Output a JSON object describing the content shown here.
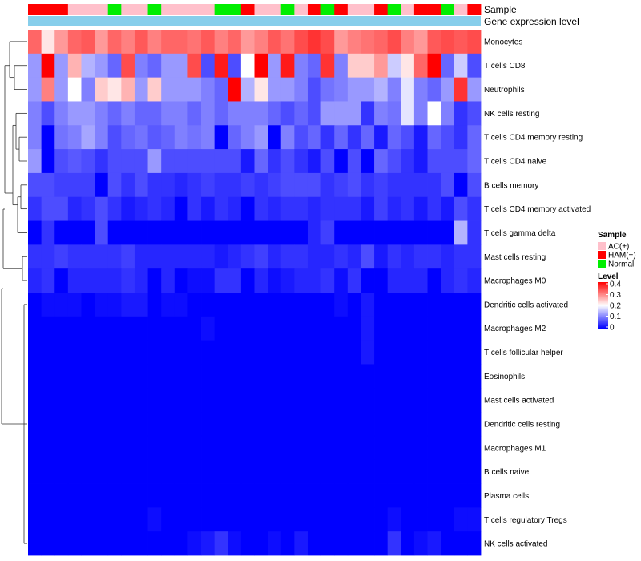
{
  "chart_data": {
    "type": "heatmap",
    "title": "",
    "n_columns": 34,
    "annotations": [
      {
        "name": "Sample"
      },
      {
        "name": "Gene expression level"
      }
    ],
    "sample_annotation": [
      "HAM(+)",
      "HAM(+)",
      "HAM(+)",
      "AC(+)",
      "AC(+)",
      "AC(+)",
      "Normal",
      "AC(+)",
      "AC(+)",
      "Normal",
      "AC(+)",
      "AC(+)",
      "AC(+)",
      "AC(+)",
      "Normal",
      "Normal",
      "HAM(+)",
      "AC(+)",
      "AC(+)",
      "Normal",
      "AC(+)",
      "HAM(+)",
      "Normal",
      "HAM(+)",
      "AC(+)",
      "AC(+)",
      "HAM(+)",
      "Normal",
      "AC(+)",
      "HAM(+)",
      "HAM(+)",
      "Normal",
      "AC(+)",
      "HAM(+)"
    ],
    "gene_expression_color": "#87ceeb",
    "rows": [
      {
        "name": "Monocytes",
        "values": [
          0.32,
          0.22,
          0.28,
          0.32,
          0.33,
          0.28,
          0.32,
          0.3,
          0.33,
          0.3,
          0.32,
          0.32,
          0.31,
          0.33,
          0.3,
          0.32,
          0.28,
          0.3,
          0.33,
          0.31,
          0.34,
          0.36,
          0.34,
          0.28,
          0.3,
          0.31,
          0.32,
          0.34,
          0.3,
          0.28,
          0.33,
          0.34,
          0.33,
          0.34
        ]
      },
      {
        "name": "T cells CD8",
        "values": [
          0.12,
          0.4,
          0.12,
          0.26,
          0.14,
          0.12,
          0.08,
          0.34,
          0.1,
          0.08,
          0.12,
          0.12,
          0.34,
          0.06,
          0.38,
          0.06,
          0.2,
          0.4,
          0.12,
          0.38,
          0.1,
          0.08,
          0.36,
          0.1,
          0.24,
          0.24,
          0.28,
          0.16,
          0.22,
          0.32,
          0.4,
          0.08,
          0.16,
          0.06
        ]
      },
      {
        "name": "Neutrophils",
        "values": [
          0.12,
          0.3,
          0.12,
          0.2,
          0.1,
          0.24,
          0.22,
          0.26,
          0.12,
          0.24,
          0.12,
          0.12,
          0.12,
          0.1,
          0.08,
          0.4,
          0.14,
          0.22,
          0.12,
          0.12,
          0.1,
          0.06,
          0.09,
          0.1,
          0.12,
          0.12,
          0.14,
          0.1,
          0.18,
          0.1,
          0.08,
          0.12,
          0.36,
          0.12
        ]
      },
      {
        "name": "NK cells resting",
        "values": [
          0.1,
          0.06,
          0.1,
          0.12,
          0.12,
          0.1,
          0.08,
          0.1,
          0.08,
          0.08,
          0.1,
          0.1,
          0.08,
          0.1,
          0.08,
          0.1,
          0.1,
          0.1,
          0.08,
          0.06,
          0.08,
          0.06,
          0.12,
          0.12,
          0.12,
          0.04,
          0.1,
          0.09,
          0.18,
          0.1,
          0.2,
          0.1,
          0.04,
          0.06
        ]
      },
      {
        "name": "T cells CD4 memory resting",
        "values": [
          0.1,
          0.0,
          0.09,
          0.1,
          0.13,
          0.1,
          0.06,
          0.08,
          0.09,
          0.07,
          0.08,
          0.1,
          0.09,
          0.1,
          0.0,
          0.08,
          0.1,
          0.12,
          0.0,
          0.1,
          0.06,
          0.08,
          0.04,
          0.08,
          0.04,
          0.08,
          0.02,
          0.08,
          0.06,
          0.02,
          0.08,
          0.06,
          0.04,
          0.08
        ]
      },
      {
        "name": "T cells CD4 naive",
        "values": [
          0.12,
          0.0,
          0.06,
          0.07,
          0.06,
          0.04,
          0.06,
          0.06,
          0.06,
          0.12,
          0.06,
          0.06,
          0.06,
          0.06,
          0.06,
          0.06,
          0.02,
          0.08,
          0.04,
          0.06,
          0.04,
          0.02,
          0.06,
          0.0,
          0.06,
          0.0,
          0.08,
          0.06,
          0.04,
          0.02,
          0.06,
          0.06,
          0.06,
          0.08
        ]
      },
      {
        "name": "B cells memory",
        "values": [
          0.06,
          0.06,
          0.05,
          0.05,
          0.05,
          0.0,
          0.06,
          0.04,
          0.06,
          0.04,
          0.04,
          0.03,
          0.04,
          0.05,
          0.04,
          0.04,
          0.05,
          0.04,
          0.05,
          0.06,
          0.06,
          0.06,
          0.04,
          0.05,
          0.06,
          0.04,
          0.05,
          0.04,
          0.04,
          0.04,
          0.04,
          0.06,
          0.0,
          0.06
        ]
      },
      {
        "name": "T cells CD4 memory activated",
        "values": [
          0.04,
          0.06,
          0.06,
          0.03,
          0.04,
          0.06,
          0.04,
          0.02,
          0.03,
          0.04,
          0.03,
          0.0,
          0.04,
          0.02,
          0.04,
          0.03,
          0.0,
          0.04,
          0.03,
          0.04,
          0.04,
          0.03,
          0.04,
          0.04,
          0.04,
          0.02,
          0.05,
          0.03,
          0.04,
          0.02,
          0.04,
          0.02,
          0.06,
          0.04
        ]
      },
      {
        "name": "T cells gamma delta",
        "values": [
          0.0,
          0.04,
          0.0,
          0.0,
          0.0,
          0.06,
          0.0,
          0.0,
          0.0,
          0.0,
          0.0,
          0.0,
          0.0,
          0.0,
          0.0,
          0.0,
          0.0,
          0.0,
          0.0,
          0.0,
          0.0,
          0.03,
          0.05,
          0.0,
          0.0,
          0.0,
          0.0,
          0.0,
          0.0,
          0.0,
          0.0,
          0.0,
          0.14,
          0.04
        ]
      },
      {
        "name": "Mast cells resting",
        "values": [
          0.04,
          0.04,
          0.05,
          0.04,
          0.04,
          0.04,
          0.04,
          0.05,
          0.03,
          0.03,
          0.03,
          0.03,
          0.03,
          0.03,
          0.02,
          0.03,
          0.04,
          0.05,
          0.03,
          0.04,
          0.04,
          0.03,
          0.03,
          0.04,
          0.03,
          0.06,
          0.02,
          0.04,
          0.03,
          0.04,
          0.04,
          0.03,
          0.04,
          0.04
        ]
      },
      {
        "name": "Macrophages M0",
        "values": [
          0.03,
          0.04,
          0.0,
          0.03,
          0.03,
          0.03,
          0.03,
          0.04,
          0.03,
          0.0,
          0.03,
          0.0,
          0.01,
          0.01,
          0.04,
          0.04,
          0.0,
          0.03,
          0.01,
          0.02,
          0.03,
          0.03,
          0.04,
          0.01,
          0.04,
          0.0,
          0.0,
          0.03,
          0.03,
          0.03,
          0.0,
          0.03,
          0.04,
          0.03
        ]
      },
      {
        "name": "Dendritic cells activated",
        "values": [
          0.0,
          0.01,
          0.01,
          0.01,
          0.0,
          0.01,
          0.01,
          0.02,
          0.02,
          0.0,
          0.01,
          0.01,
          0.0,
          0.0,
          0.0,
          0.0,
          0.0,
          0.0,
          0.0,
          0.0,
          0.0,
          0.0,
          0.0,
          0.01,
          0.0,
          0.02,
          0.0,
          0.0,
          0.0,
          0.0,
          0.0,
          0.0,
          0.0,
          0.0
        ]
      },
      {
        "name": "Macrophages M2",
        "values": [
          0.0,
          0.0,
          0.0,
          0.0,
          0.0,
          0.0,
          0.0,
          0.0,
          0.0,
          0.0,
          0.0,
          0.0,
          0.0,
          0.01,
          0.0,
          0.0,
          0.0,
          0.0,
          0.0,
          0.0,
          0.0,
          0.0,
          0.0,
          0.0,
          0.0,
          0.02,
          0.0,
          0.0,
          0.0,
          0.0,
          0.0,
          0.0,
          0.0,
          0.0
        ]
      },
      {
        "name": "T cells follicular helper",
        "values": [
          0.0,
          0.0,
          0.0,
          0.0,
          0.0,
          0.0,
          0.0,
          0.0,
          0.0,
          0.0,
          0.0,
          0.0,
          0.0,
          0.0,
          0.0,
          0.0,
          0.0,
          0.0,
          0.0,
          0.0,
          0.0,
          0.0,
          0.0,
          0.0,
          0.0,
          0.02,
          0.0,
          0.0,
          0.0,
          0.0,
          0.0,
          0.0,
          0.0,
          0.0
        ]
      },
      {
        "name": "Eosinophils",
        "values": [
          0.0,
          0.0,
          0.0,
          0.0,
          0.0,
          0.0,
          0.0,
          0.0,
          0.0,
          0.0,
          0.0,
          0.0,
          0.0,
          0.0,
          0.0,
          0.0,
          0.0,
          0.0,
          0.0,
          0.0,
          0.0,
          0.0,
          0.0,
          0.0,
          0.0,
          0.0,
          0.0,
          0.0,
          0.0,
          0.0,
          0.0,
          0.0,
          0.0,
          0.0
        ]
      },
      {
        "name": "Mast cells activated",
        "values": [
          0.0,
          0.0,
          0.0,
          0.0,
          0.0,
          0.0,
          0.0,
          0.0,
          0.0,
          0.0,
          0.0,
          0.0,
          0.0,
          0.0,
          0.0,
          0.0,
          0.0,
          0.0,
          0.0,
          0.0,
          0.0,
          0.0,
          0.0,
          0.0,
          0.0,
          0.0,
          0.0,
          0.0,
          0.0,
          0.0,
          0.0,
          0.0,
          0.0,
          0.0
        ]
      },
      {
        "name": "Dendritic cells resting",
        "values": [
          0.0,
          0.0,
          0.0,
          0.0,
          0.0,
          0.0,
          0.0,
          0.0,
          0.0,
          0.0,
          0.0,
          0.0,
          0.0,
          0.0,
          0.0,
          0.0,
          0.0,
          0.0,
          0.0,
          0.0,
          0.0,
          0.0,
          0.0,
          0.0,
          0.0,
          0.0,
          0.0,
          0.0,
          0.0,
          0.0,
          0.0,
          0.0,
          0.0,
          0.0
        ]
      },
      {
        "name": "Macrophages M1",
        "values": [
          0.0,
          0.0,
          0.0,
          0.0,
          0.0,
          0.0,
          0.0,
          0.0,
          0.0,
          0.0,
          0.0,
          0.0,
          0.0,
          0.0,
          0.0,
          0.0,
          0.0,
          0.0,
          0.0,
          0.0,
          0.0,
          0.0,
          0.0,
          0.0,
          0.0,
          0.0,
          0.0,
          0.0,
          0.0,
          0.0,
          0.0,
          0.0,
          0.0,
          0.0
        ]
      },
      {
        "name": "B cells naive",
        "values": [
          0.0,
          0.0,
          0.0,
          0.0,
          0.0,
          0.0,
          0.0,
          0.0,
          0.0,
          0.0,
          0.0,
          0.0,
          0.0,
          0.0,
          0.0,
          0.0,
          0.0,
          0.0,
          0.0,
          0.0,
          0.0,
          0.0,
          0.0,
          0.0,
          0.0,
          0.0,
          0.0,
          0.0,
          0.0,
          0.0,
          0.0,
          0.0,
          0.0,
          0.0
        ]
      },
      {
        "name": "Plasma cells",
        "values": [
          0.0,
          0.0,
          0.0,
          0.0,
          0.0,
          0.0,
          0.0,
          0.0,
          0.0,
          0.0,
          0.0,
          0.0,
          0.0,
          0.0,
          0.0,
          0.0,
          0.0,
          0.0,
          0.0,
          0.0,
          0.0,
          0.0,
          0.0,
          0.0,
          0.0,
          0.0,
          0.0,
          0.0,
          0.0,
          0.0,
          0.0,
          0.0,
          0.0,
          0.0
        ]
      },
      {
        "name": "T cells regulatory  Tregs",
        "values": [
          0.0,
          0.0,
          0.0,
          0.0,
          0.0,
          0.0,
          0.0,
          0.0,
          0.0,
          0.01,
          0.0,
          0.0,
          0.0,
          0.0,
          0.0,
          0.0,
          0.0,
          0.0,
          0.0,
          0.0,
          0.0,
          0.0,
          0.0,
          0.0,
          0.0,
          0.0,
          0.0,
          0.01,
          0.0,
          0.0,
          0.0,
          0.0,
          0.01,
          0.01
        ]
      },
      {
        "name": "NK cells activated",
        "values": [
          0.0,
          0.0,
          0.0,
          0.0,
          0.0,
          0.0,
          0.0,
          0.0,
          0.0,
          0.0,
          0.0,
          0.0,
          0.01,
          0.02,
          0.04,
          0.01,
          0.0,
          0.0,
          0.01,
          0.0,
          0.02,
          0.0,
          0.0,
          0.0,
          0.0,
          0.0,
          0.0,
          0.04,
          0.0,
          0.01,
          0.02,
          0.0,
          0.0,
          0.0
        ]
      }
    ],
    "legend": {
      "sample_title": "Sample",
      "sample_entries": [
        {
          "label": "AC(+)",
          "color": "#ffc0cb"
        },
        {
          "label": "HAM(+)",
          "color": "#ff0000"
        },
        {
          "label": "Normal",
          "color": "#00ee00"
        }
      ],
      "level_title": "Level",
      "level_ticks": [
        0.4,
        0.3,
        0.2,
        0.1,
        0
      ],
      "level_range": [
        0,
        0.4
      ],
      "low_color": "#0000ff",
      "mid_color": "#ffffff",
      "high_color": "#ff0000"
    }
  }
}
